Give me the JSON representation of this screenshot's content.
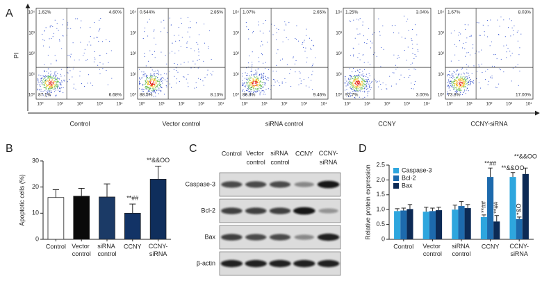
{
  "panel_labels": [
    "A",
    "B",
    "C",
    "D"
  ],
  "flow": {
    "y_label": "PI",
    "ticks": [
      "10⁰",
      "10¹",
      "10²",
      "10³",
      "10⁴"
    ],
    "plots": [
      {
        "label": "Control",
        "ul": "1.62%",
        "ur": "4.60%",
        "ll": "87.1%",
        "lr": "6.68%"
      },
      {
        "label": "Vector control",
        "ul": "0.544%",
        "ur": "2.85%",
        "ll": "88.5%",
        "lr": "8.13%"
      },
      {
        "label": "siRNA control",
        "ul": "1.07%",
        "ur": "2.65%",
        "ll": "86.8%",
        "lr": "9.46%"
      },
      {
        "label": "CCNY",
        "ul": "1.25%",
        "ur": "3.04%",
        "ll": "92.7%",
        "lr": "3.00%"
      },
      {
        "label": "CCNY-siRNA",
        "ul": "1.67%",
        "ur": "8.03%",
        "ll": "73.3%",
        "lr": "17.00%"
      }
    ]
  },
  "chart_data": [
    {
      "type": "bar",
      "ylabel": "Apoptotic cells (%)",
      "categories": [
        "Control",
        "Vector control",
        "siRNA control",
        "CCNY",
        "CCNY-siRNA"
      ],
      "values": [
        16,
        16.5,
        16.2,
        10,
        23
      ],
      "errors": [
        3,
        3,
        5,
        3.5,
        5
      ],
      "colors": [
        "#ffffff",
        "#0a0a0a",
        "#1b3a66",
        "#123366",
        "#0f2e5c"
      ],
      "annotations": [
        null,
        null,
        null,
        "**##",
        "**&&OO"
      ],
      "ylim": [
        0,
        30
      ],
      "yticks": [
        0,
        10,
        20,
        30
      ]
    },
    {
      "type": "grouped_bar",
      "ylabel": "Relative protein expression",
      "categories": [
        "Control",
        "Vector control",
        "siRNA control",
        "CCNY",
        "CCNY-siRNA"
      ],
      "series": [
        {
          "name": "Caspase-3",
          "color": "#2ea6de",
          "values": [
            0.95,
            0.93,
            1.0,
            0.75,
            2.1
          ],
          "errors": [
            0.08,
            0.15,
            0.15,
            0.07,
            0.15
          ],
          "annotations": [
            null,
            null,
            null,
            "**##",
            "**&&OO"
          ]
        },
        {
          "name": "Bcl-2",
          "color": "#1d6aad",
          "values": [
            0.97,
            0.95,
            1.12,
            2.1,
            0.68
          ],
          "errors": [
            0.08,
            0.1,
            0.15,
            0.3,
            0.07
          ],
          "annotations": [
            null,
            null,
            null,
            "**##",
            "*&O"
          ]
        },
        {
          "name": "Bax",
          "color": "#0c2a55",
          "values": [
            1.02,
            0.98,
            1.05,
            0.6,
            2.2
          ],
          "errors": [
            0.15,
            0.1,
            0.12,
            0.2,
            0.2
          ],
          "annotations": [
            null,
            null,
            null,
            "**##",
            "**&&OO"
          ]
        }
      ],
      "ylim": [
        0,
        2.5
      ],
      "yticks": [
        0,
        0.5,
        {
          "value": 1,
          "label": "1.0"
        },
        1.5,
        {
          "value": 2,
          "label": "2.0"
        },
        2.5
      ],
      "legend": "upper left"
    }
  ],
  "blot": {
    "columns": [
      "Control",
      "Vector control",
      "siRNA control",
      "CCNY",
      "CCNY-siRNA"
    ],
    "rows": [
      "Caspase-3",
      "Bcl-2",
      "Bax",
      "β-actin"
    ]
  }
}
